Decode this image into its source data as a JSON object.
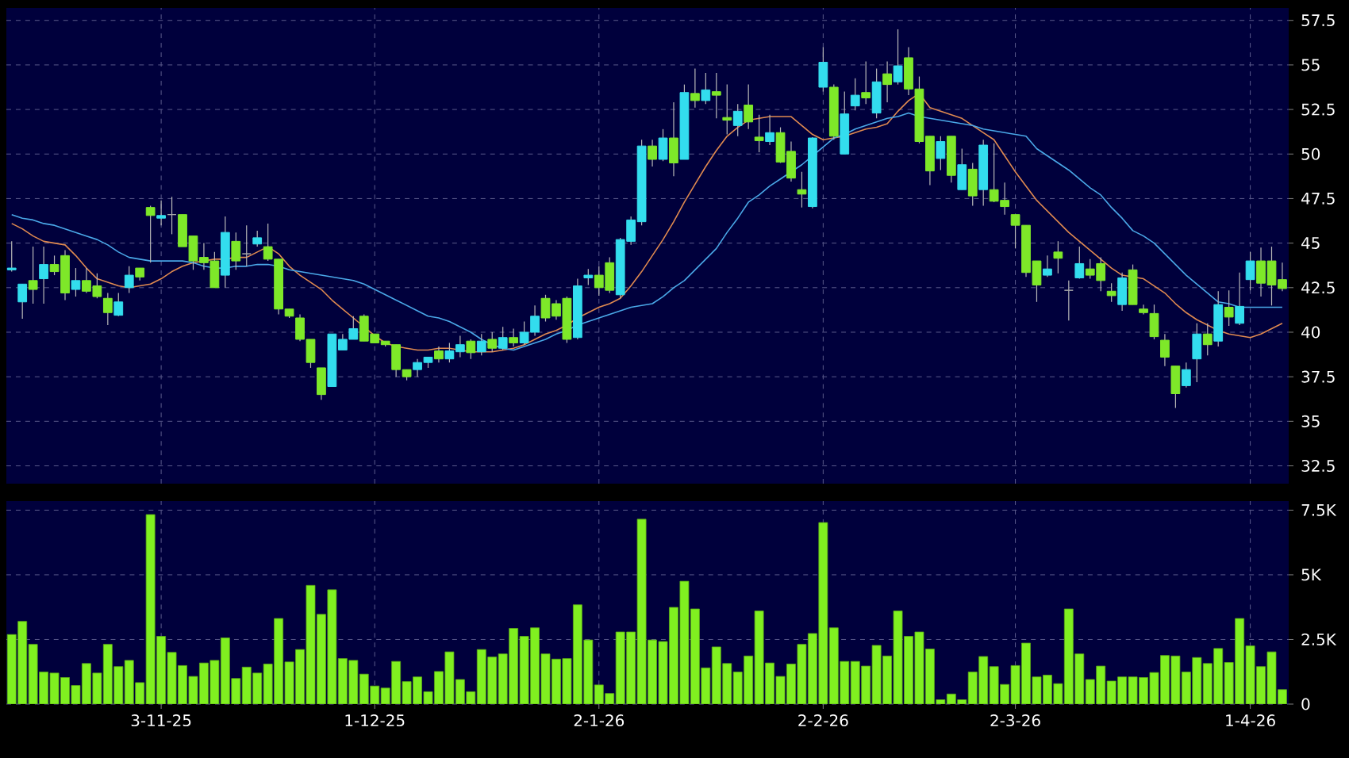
{
  "chart_data": [
    {
      "type": "candlestick",
      "categories": [
        null,
        null,
        null,
        null,
        null,
        null,
        null,
        null,
        null,
        null,
        null,
        null,
        null,
        null,
        null,
        null,
        null,
        null,
        null,
        null,
        null,
        null,
        null,
        null,
        null,
        null,
        null,
        null,
        null,
        null,
        null,
        null,
        null,
        null,
        null,
        null,
        null,
        null,
        null,
        null,
        null,
        null,
        null,
        null,
        null,
        null,
        null,
        null,
        null,
        null,
        null,
        null,
        null,
        null,
        null,
        null,
        null,
        null,
        null,
        null,
        null,
        null,
        null,
        null,
        null,
        null,
        null,
        null,
        null,
        null,
        null,
        null,
        null,
        null,
        null,
        null,
        null,
        null,
        null,
        null,
        null,
        null,
        null,
        null,
        null,
        null,
        null,
        null,
        null,
        null,
        null,
        null,
        null,
        null,
        null,
        null,
        null,
        null,
        null,
        null,
        null,
        null,
        null,
        null,
        null,
        null,
        null,
        null,
        null,
        null,
        null,
        null,
        null,
        null,
        null,
        null,
        null,
        null,
        null,
        null
      ],
      "ohlc": [
        [
          43.5,
          45.1,
          43.4,
          43.6
        ],
        [
          41.7,
          42.7,
          40.75,
          42.7
        ],
        [
          42.9,
          44.8,
          41.6,
          42.4
        ],
        [
          43.0,
          44.8,
          41.6,
          43.8
        ],
        [
          43.8,
          44.3,
          43.2,
          43.4
        ],
        [
          44.3,
          44.6,
          41.8,
          42.2
        ],
        [
          42.4,
          43.6,
          42.0,
          42.9
        ],
        [
          42.9,
          43.6,
          42.2,
          42.3
        ],
        [
          42.6,
          43.3,
          41.9,
          42.0
        ],
        [
          41.9,
          42.2,
          40.4,
          41.1
        ],
        [
          40.95,
          42.2,
          40.9,
          41.7
        ],
        [
          42.5,
          43.7,
          42.2,
          43.2
        ],
        [
          43.6,
          43.6,
          42.9,
          43.1
        ],
        [
          47.0,
          47.1,
          43.9,
          46.55
        ],
        [
          46.4,
          47.4,
          46.0,
          46.55
        ],
        [
          46.6,
          47.6,
          45.5,
          46.6
        ],
        [
          46.6,
          46.6,
          44.8,
          44.8
        ],
        [
          45.4,
          45.4,
          43.5,
          44.0
        ],
        [
          44.2,
          45.0,
          43.5,
          43.9
        ],
        [
          44.0,
          44.5,
          42.5,
          42.5
        ],
        [
          43.2,
          46.5,
          42.5,
          45.6
        ],
        [
          45.1,
          45.6,
          43.5,
          44.0
        ],
        [
          44.4,
          46.0,
          43.7,
          44.4
        ],
        [
          44.95,
          45.7,
          44.8,
          45.3
        ],
        [
          44.8,
          46.1,
          44.0,
          44.1
        ],
        [
          44.1,
          44.1,
          41.0,
          41.3
        ],
        [
          41.3,
          41.3,
          40.8,
          40.9
        ],
        [
          40.8,
          41.0,
          39.5,
          39.6
        ],
        [
          39.6,
          39.6,
          38.0,
          38.3
        ],
        [
          38.0,
          38.0,
          36.2,
          36.5
        ],
        [
          36.95,
          39.9,
          36.95,
          39.9
        ],
        [
          39.0,
          39.9,
          39.0,
          39.6
        ],
        [
          39.6,
          40.9,
          39.6,
          40.2
        ],
        [
          40.9,
          41.0,
          39.5,
          39.5
        ],
        [
          39.9,
          39.9,
          39.4,
          39.4
        ],
        [
          39.5,
          39.5,
          39.2,
          39.3
        ],
        [
          39.3,
          39.3,
          37.5,
          37.9
        ],
        [
          37.9,
          37.9,
          37.3,
          37.5
        ],
        [
          37.9,
          38.5,
          37.5,
          38.3
        ],
        [
          38.3,
          38.6,
          38.0,
          38.6
        ],
        [
          38.95,
          39.2,
          38.3,
          38.5
        ],
        [
          38.5,
          39.4,
          38.3,
          38.95
        ],
        [
          38.9,
          39.8,
          38.6,
          39.3
        ],
        [
          39.5,
          39.6,
          38.5,
          38.85
        ],
        [
          38.9,
          39.9,
          38.7,
          39.5
        ],
        [
          39.6,
          40.0,
          38.9,
          39.1
        ],
        [
          39.1,
          40.3,
          39.0,
          39.7
        ],
        [
          39.7,
          40.2,
          39.2,
          39.4
        ],
        [
          39.4,
          40.6,
          39.3,
          40.0
        ],
        [
          40.0,
          41.5,
          39.8,
          40.9
        ],
        [
          41.9,
          42.1,
          40.6,
          40.8
        ],
        [
          41.6,
          41.8,
          40.7,
          40.9
        ],
        [
          41.9,
          42.0,
          39.4,
          39.6
        ],
        [
          39.7,
          43.0,
          39.6,
          42.6
        ],
        [
          43.05,
          43.55,
          42.65,
          43.2
        ],
        [
          43.2,
          43.7,
          42.05,
          42.5
        ],
        [
          43.9,
          44.2,
          42.2,
          42.35
        ],
        [
          42.1,
          45.3,
          41.9,
          45.2
        ],
        [
          45.1,
          46.5,
          44.9,
          46.3
        ],
        [
          46.2,
          50.8,
          46.0,
          50.45
        ],
        [
          50.45,
          50.8,
          49.3,
          49.7
        ],
        [
          49.7,
          51.4,
          49.6,
          50.9
        ],
        [
          50.9,
          52.9,
          48.75,
          49.5
        ],
        [
          49.7,
          53.9,
          49.7,
          53.45
        ],
        [
          53.4,
          54.8,
          52.6,
          53.0
        ],
        [
          53.0,
          54.55,
          52.8,
          53.6
        ],
        [
          53.5,
          54.55,
          52.0,
          53.3
        ],
        [
          52.05,
          53.9,
          51.1,
          51.9
        ],
        [
          51.6,
          52.8,
          51.0,
          52.4
        ],
        [
          52.75,
          53.9,
          51.4,
          51.8
        ],
        [
          50.95,
          52.2,
          50.1,
          50.75
        ],
        [
          50.7,
          52.2,
          50.5,
          51.2
        ],
        [
          51.2,
          51.5,
          49.5,
          49.55
        ],
        [
          50.15,
          50.7,
          48.45,
          48.65
        ],
        [
          48.0,
          49.0,
          47.0,
          47.75
        ],
        [
          47.05,
          50.95,
          46.95,
          50.9
        ],
        [
          53.75,
          56.0,
          53.5,
          55.15
        ],
        [
          53.75,
          53.9,
          50.8,
          51.0
        ],
        [
          50.0,
          53.5,
          50.0,
          52.25
        ],
        [
          52.7,
          54.25,
          52.45,
          53.3
        ],
        [
          53.45,
          55.2,
          52.8,
          53.15
        ],
        [
          52.3,
          54.8,
          52.0,
          54.05
        ],
        [
          54.5,
          55.2,
          52.9,
          53.9
        ],
        [
          54.05,
          57.0,
          53.9,
          54.95
        ],
        [
          55.4,
          56.0,
          53.3,
          53.65
        ],
        [
          53.65,
          54.35,
          50.6,
          50.7
        ],
        [
          51.0,
          51.0,
          48.25,
          49.05
        ],
        [
          49.75,
          51.0,
          49.1,
          50.7
        ],
        [
          51.0,
          51.0,
          48.4,
          48.8
        ],
        [
          48.0,
          50.3,
          48.0,
          49.4
        ],
        [
          49.15,
          49.5,
          47.1,
          47.65
        ],
        [
          48.0,
          50.8,
          47.1,
          50.5
        ],
        [
          48.0,
          50.6,
          47.3,
          47.35
        ],
        [
          47.4,
          48.4,
          46.6,
          47.05
        ],
        [
          46.6,
          46.6,
          44.7,
          46.0
        ],
        [
          46.0,
          46.0,
          43.1,
          43.35
        ],
        [
          44.0,
          44.0,
          41.7,
          42.65
        ],
        [
          43.2,
          44.3,
          43.1,
          43.55
        ],
        [
          44.5,
          45.1,
          43.3,
          44.15
        ],
        [
          42.35,
          42.9,
          40.65,
          42.35
        ],
        [
          43.05,
          44.8,
          43.0,
          43.85
        ],
        [
          43.55,
          44.1,
          43.0,
          43.2
        ],
        [
          43.85,
          44.2,
          42.3,
          42.9
        ],
        [
          42.3,
          42.75,
          41.7,
          42.05
        ],
        [
          41.55,
          43.35,
          41.2,
          43.05
        ],
        [
          43.5,
          43.8,
          41.55,
          41.55
        ],
        [
          41.3,
          41.55,
          41.0,
          41.1
        ],
        [
          41.05,
          41.55,
          39.6,
          39.75
        ],
        [
          39.55,
          39.9,
          38.1,
          38.6
        ],
        [
          38.1,
          38.1,
          35.75,
          36.55
        ],
        [
          37.0,
          38.3,
          36.9,
          37.9
        ],
        [
          38.5,
          40.5,
          37.2,
          39.9
        ],
        [
          39.9,
          40.5,
          38.7,
          39.3
        ],
        [
          39.5,
          42.3,
          39.2,
          41.55
        ],
        [
          41.4,
          42.35,
          40.35,
          40.85
        ],
        [
          40.5,
          43.35,
          40.4,
          41.45
        ],
        [
          42.95,
          44.5,
          42.35,
          44.0
        ],
        [
          44.0,
          44.75,
          42.0,
          42.75
        ],
        [
          44.0,
          44.8,
          41.5,
          42.65
        ],
        [
          42.95,
          43.9,
          42.3,
          42.45
        ]
      ],
      "colors": [
        "#33ddee",
        "#33ddee",
        "#7ee829",
        "#33ddee",
        "#7ee829",
        "#7ee829",
        "#33ddee",
        "#7ee829",
        "#7ee829",
        "#7ee829",
        "#33ddee",
        "#33ddee",
        "#7ee829",
        "#7ee829",
        "#33ddee",
        "#aaaaaa",
        "#7ee829",
        "#7ee829",
        "#7ee829",
        "#7ee829",
        "#33ddee",
        "#7ee829",
        "#aaaaaa",
        "#33ddee",
        "#7ee829",
        "#7ee829",
        "#7ee829",
        "#7ee829",
        "#7ee829",
        "#7ee829",
        "#33ddee",
        "#33ddee",
        "#33ddee",
        "#7ee829",
        "#7ee829",
        "#7ee829",
        "#7ee829",
        "#7ee829",
        "#33ddee",
        "#33ddee",
        "#7ee829",
        "#33ddee",
        "#33ddee",
        "#7ee829",
        "#33ddee",
        "#7ee829",
        "#33ddee",
        "#7ee829",
        "#33ddee",
        "#33ddee",
        "#7ee829",
        "#7ee829",
        "#7ee829",
        "#33ddee",
        "#33ddee",
        "#7ee829",
        "#7ee829",
        "#33ddee",
        "#33ddee",
        "#33ddee",
        "#7ee829",
        "#33ddee",
        "#7ee829",
        "#33ddee",
        "#7ee829",
        "#33ddee",
        "#7ee829",
        "#7ee829",
        "#33ddee",
        "#7ee829",
        "#7ee829",
        "#33ddee",
        "#7ee829",
        "#7ee829",
        "#7ee829",
        "#33ddee",
        "#33ddee",
        "#7ee829",
        "#33ddee",
        "#33ddee",
        "#7ee829",
        "#33ddee",
        "#7ee829",
        "#33ddee",
        "#7ee829",
        "#7ee829",
        "#7ee829",
        "#33ddee",
        "#7ee829",
        "#33ddee",
        "#7ee829",
        "#33ddee",
        "#7ee829",
        "#7ee829",
        "#7ee829",
        "#7ee829",
        "#7ee829",
        "#33ddee",
        "#7ee829",
        "#aaaaaa",
        "#33ddee",
        "#7ee829",
        "#7ee829",
        "#7ee829",
        "#33ddee",
        "#7ee829",
        "#7ee829",
        "#7ee829",
        "#7ee829",
        "#7ee829",
        "#33ddee",
        "#33ddee",
        "#7ee829",
        "#33ddee",
        "#7ee829",
        "#33ddee",
        "#33ddee",
        "#7ee829",
        "#7ee829",
        "#7ee829"
      ],
      "series": [
        {
          "type": "line",
          "color": "#e08a50",
          "values": [
            46.1,
            45.8,
            45.4,
            45.1,
            45.0,
            44.9,
            44.3,
            43.6,
            43.0,
            42.8,
            42.6,
            42.5,
            42.6,
            42.7,
            43.0,
            43.4,
            43.7,
            43.9,
            44.0,
            44.1,
            44.1,
            44.2,
            44.2,
            44.5,
            44.8,
            44.4,
            43.7,
            43.2,
            42.8,
            42.4,
            41.8,
            41.3,
            40.8,
            40.3,
            39.8,
            39.4,
            39.2,
            39.1,
            39.0,
            39.0,
            39.1,
            39.1,
            39.0,
            38.9,
            38.9,
            38.9,
            39.0,
            39.1,
            39.3,
            39.6,
            39.9,
            40.1,
            40.4,
            40.8,
            41.1,
            41.4,
            41.6,
            41.9,
            42.6,
            43.4,
            44.3,
            45.2,
            46.2,
            47.3,
            48.3,
            49.3,
            50.2,
            51.0,
            51.5,
            51.9,
            52.0,
            52.1,
            52.1,
            52.1,
            51.6,
            51.1,
            50.8,
            50.9,
            51.0,
            51.2,
            51.4,
            51.5,
            51.7,
            52.4,
            53.0,
            53.4,
            52.6,
            52.4,
            52.2,
            52.0,
            51.6,
            51.2,
            50.8,
            49.9,
            49.0,
            48.2,
            47.4,
            46.8,
            46.2,
            45.6,
            45.1,
            44.6,
            44.1,
            43.6,
            43.2,
            43.1,
            43.0,
            42.6,
            42.2,
            41.6,
            41.1,
            40.7,
            40.4,
            40.1,
            39.9,
            39.8,
            39.7,
            39.9,
            40.2,
            40.5
          ]
        },
        {
          "type": "line",
          "color": "#4aa8e8",
          "values": [
            46.6,
            46.4,
            46.3,
            46.1,
            46.0,
            45.8,
            45.6,
            45.4,
            45.2,
            44.9,
            44.5,
            44.2,
            44.1,
            44.0,
            44.0,
            44.0,
            44.0,
            43.9,
            43.7,
            43.6,
            43.6,
            43.7,
            43.7,
            43.8,
            43.8,
            43.7,
            43.5,
            43.4,
            43.3,
            43.2,
            43.1,
            43.0,
            42.9,
            42.7,
            42.4,
            42.1,
            41.8,
            41.5,
            41.2,
            40.9,
            40.8,
            40.6,
            40.3,
            40.0,
            39.6,
            39.3,
            39.1,
            39.0,
            39.2,
            39.4,
            39.6,
            39.9,
            40.1,
            40.4,
            40.6,
            40.8,
            41.0,
            41.2,
            41.4,
            41.5,
            41.6,
            42.0,
            42.5,
            42.9,
            43.5,
            44.1,
            44.7,
            45.6,
            46.4,
            47.3,
            47.7,
            48.2,
            48.6,
            49.0,
            49.4,
            49.9,
            50.4,
            50.9,
            51.1,
            51.4,
            51.6,
            51.8,
            52.0,
            52.1,
            52.3,
            52.1,
            52.0,
            51.9,
            51.8,
            51.7,
            51.6,
            51.4,
            51.3,
            51.2,
            51.1,
            51.0,
            50.3,
            49.9,
            49.5,
            49.1,
            48.6,
            48.1,
            47.7,
            47.0,
            46.4,
            45.7,
            45.4,
            45.0,
            44.4,
            43.8,
            43.2,
            42.7,
            42.2,
            41.7,
            41.6,
            41.4,
            41.4,
            41.4,
            41.4,
            41.4
          ]
        }
      ],
      "ylim": [
        31.5,
        58.2
      ],
      "yticks": [
        32.5,
        35,
        37.5,
        40,
        42.5,
        45,
        47.5,
        50,
        52.5,
        55,
        57.5
      ],
      "grid": true,
      "tick_labels": "y"
    },
    {
      "type": "bar",
      "categories": [
        null,
        null,
        null,
        null,
        null,
        null,
        null,
        null,
        null,
        null,
        null,
        null,
        null,
        null,
        "3-11-25",
        null,
        null,
        null,
        null,
        null,
        null,
        null,
        null,
        null,
        null,
        null,
        null,
        null,
        null,
        null,
        null,
        null,
        null,
        null,
        "1-12-25",
        null,
        null,
        null,
        null,
        null,
        null,
        null,
        null,
        null,
        null,
        null,
        null,
        null,
        null,
        null,
        null,
        null,
        null,
        null,
        null,
        "2-1-26",
        null,
        null,
        null,
        null,
        null,
        null,
        null,
        null,
        null,
        null,
        null,
        null,
        null,
        null,
        null,
        null,
        null,
        null,
        null,
        null,
        "2-2-26",
        null,
        null,
        null,
        null,
        null,
        null,
        null,
        null,
        null,
        null,
        null,
        null,
        null,
        null,
        null,
        null,
        null,
        "2-3-26",
        null,
        null,
        null,
        null,
        null,
        null,
        null,
        null,
        null,
        null,
        null,
        null,
        null,
        null,
        null,
        null,
        null,
        null,
        null,
        null,
        null,
        "1-4-26",
        null,
        null,
        null
      ],
      "values": [
        2690,
        3200,
        2310,
        1240,
        1200,
        1030,
        720,
        1570,
        1200,
        2310,
        1450,
        1690,
        830,
        7330,
        2620,
        2000,
        1490,
        1070,
        1590,
        1690,
        2560,
        990,
        1430,
        1200,
        1550,
        3310,
        1630,
        2110,
        4590,
        3470,
        4420,
        1760,
        1690,
        1160,
        700,
        620,
        1650,
        870,
        1050,
        480,
        1260,
        2020,
        950,
        480,
        2110,
        1820,
        1940,
        2930,
        2620,
        2950,
        1940,
        1740,
        1760,
        3840,
        2480,
        740,
        410,
        2790,
        2790,
        7150,
        2480,
        2420,
        3740,
        4750,
        3680,
        1400,
        2210,
        1570,
        1240,
        1860,
        3600,
        1590,
        1070,
        1550,
        2310,
        2730,
        7020,
        2950,
        1650,
        1650,
        1470,
        2270,
        1860,
        3600,
        2620,
        2790,
        2130,
        170,
        390,
        170,
        1240,
        1840,
        1450,
        760,
        1490,
        2360,
        1050,
        1120,
        790,
        3680,
        1940,
        950,
        1470,
        890,
        1050,
        1050,
        1030,
        1220,
        1880,
        1860,
        1240,
        1800,
        1570,
        2150,
        1610,
        3310,
        2250,
        1450,
        2020,
        560
      ],
      "color": "#80f020",
      "ylim": [
        0,
        7850
      ],
      "yticks": [
        0,
        {
          "value": 2500,
          "label": "2.5K"
        },
        {
          "value": 5000,
          "label": "5K"
        },
        {
          "value": 7500,
          "label": "7.5K"
        }
      ],
      "grid": true
    }
  ]
}
